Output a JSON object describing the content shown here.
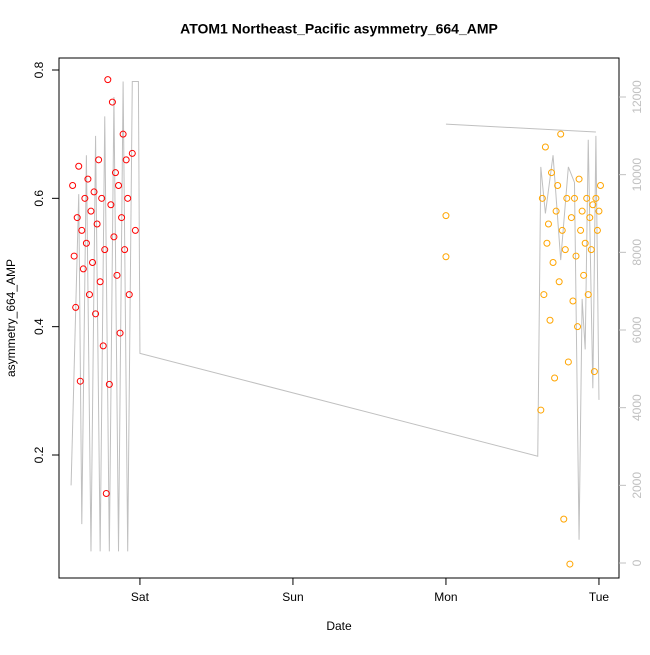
{
  "chart_data": {
    "type": "scatter",
    "title": "ATOM1 Northeast_Pacific asymmetry_664_AMP",
    "x_label": "Date",
    "y_label": "asymmetry_664_AMP",
    "xlim": [
      -0.529,
      3.131
    ],
    "xticks": [
      {
        "value": 0,
        "label": "Sat"
      },
      {
        "value": 1,
        "label": "Sun"
      },
      {
        "value": 2,
        "label": "Mon"
      },
      {
        "value": 3,
        "label": "Tue"
      }
    ],
    "ylim": [
      0.0083,
      0.8187
    ],
    "yticks": [
      0.2,
      0.4,
      0.6,
      0.8
    ],
    "y2lim": [
      -386,
      13004
    ],
    "y2ticks": [
      0,
      2000,
      4000,
      6000,
      8000,
      10000,
      12000
    ],
    "series": [
      {
        "color": "#ff0000",
        "x": [
          -0.44,
          -0.43,
          -0.42,
          -0.41,
          -0.4,
          -0.39,
          -0.38,
          -0.37,
          -0.36,
          -0.35,
          -0.34,
          -0.33,
          -0.32,
          -0.31,
          -0.3,
          -0.29,
          -0.28,
          -0.27,
          -0.26,
          -0.25,
          -0.24,
          -0.23,
          -0.22,
          -0.21,
          -0.2,
          -0.19,
          -0.18,
          -0.17,
          -0.16,
          -0.15,
          -0.14,
          -0.13,
          -0.12,
          -0.11,
          -0.1,
          -0.09,
          -0.08,
          -0.07,
          -0.05,
          -0.03
        ],
        "values": [
          0.62,
          0.51,
          0.43,
          0.57,
          0.65,
          0.315,
          0.55,
          0.49,
          0.6,
          0.53,
          0.63,
          0.45,
          0.58,
          0.5,
          0.61,
          0.42,
          0.56,
          0.66,
          0.47,
          0.6,
          0.37,
          0.52,
          0.14,
          0.785,
          0.31,
          0.59,
          0.75,
          0.54,
          0.64,
          0.48,
          0.62,
          0.39,
          0.57,
          0.7,
          0.52,
          0.66,
          0.6,
          0.45,
          0.67,
          0.55
        ]
      },
      {
        "color": "#ffa500",
        "x": [
          2.0,
          2.0,
          2.62,
          2.63,
          2.64,
          2.65,
          2.66,
          2.67,
          2.68,
          2.69,
          2.7,
          2.71,
          2.72,
          2.73,
          2.74,
          2.75,
          2.76,
          2.77,
          2.78,
          2.79,
          2.8,
          2.81,
          2.82,
          2.83,
          2.84,
          2.85,
          2.86,
          2.87,
          2.88,
          2.89,
          2.9,
          2.91,
          2.92,
          2.93,
          2.94,
          2.95,
          2.96,
          2.97,
          2.98,
          2.99,
          3.0,
          3.01
        ],
        "values": [
          0.573,
          0.509,
          0.27,
          0.6,
          0.45,
          0.68,
          0.53,
          0.56,
          0.41,
          0.64,
          0.5,
          0.32,
          0.58,
          0.62,
          0.47,
          0.7,
          0.55,
          0.1,
          0.52,
          0.6,
          0.345,
          0.03,
          0.57,
          0.44,
          0.6,
          0.51,
          0.4,
          0.63,
          0.55,
          0.58,
          0.48,
          0.53,
          0.6,
          0.45,
          0.57,
          0.52,
          0.59,
          0.33,
          0.6,
          0.55,
          0.58,
          0.62
        ]
      },
      {
        "color": "#c0c0c0",
        "axis": "y2",
        "type": "line",
        "x": [
          -0.45,
          -0.4,
          -0.38,
          -0.35,
          -0.32,
          -0.29,
          -0.26,
          -0.23,
          -0.2,
          -0.17,
          -0.14,
          -0.11,
          -0.08,
          -0.05,
          -0.01,
          0.0,
          2.6,
          2.62,
          2.65,
          2.7,
          2.75,
          2.8,
          2.84,
          2.87,
          2.89,
          2.91,
          2.93,
          2.96,
          2.98,
          3.0,
          null,
          2.0,
          2.98
        ],
        "values": [
          2000,
          9500,
          1000,
          10500,
          300,
          11000,
          300,
          11500,
          300,
          12000,
          300,
          12400,
          300,
          12400,
          12400,
          5400,
          2750,
          10200,
          9000,
          10500,
          7800,
          10200,
          9800,
          600,
          6800,
          5500,
          10900,
          4500,
          11000,
          4200,
          null,
          11300,
          11100
        ]
      }
    ]
  }
}
